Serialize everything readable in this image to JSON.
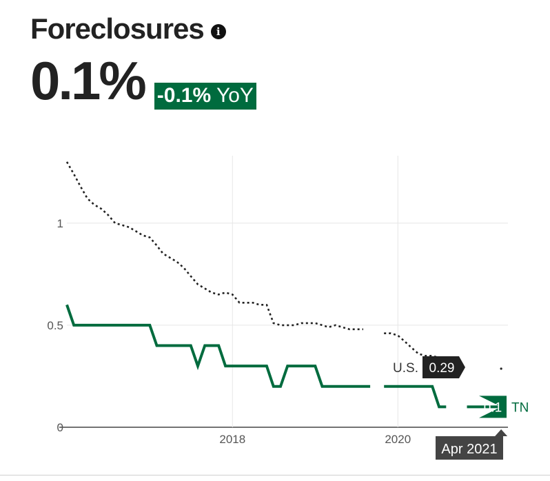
{
  "header": {
    "title": "Foreclosures",
    "info_icon": "info-icon",
    "value": "0.1%",
    "yoy_value": "-0.1%",
    "yoy_suffix": " YoY"
  },
  "colors": {
    "tn": "#006b3e",
    "us": "#222222",
    "grid": "#e6e6e6",
    "tooltip_bg": "#444444"
  },
  "chart_data": {
    "type": "line",
    "title": "",
    "xlabel": "",
    "ylabel": "",
    "xlim": [
      "2016-01-01",
      "2021-05-01"
    ],
    "ylim": [
      0,
      1.33
    ],
    "y_ticks": [
      {
        "value": 0,
        "label": "0"
      },
      {
        "value": 0.5,
        "label": "0.5"
      },
      {
        "value": 1,
        "label": "1"
      }
    ],
    "x_ticks": [
      {
        "date": "2018-01-01",
        "label": "2018"
      },
      {
        "date": "2020-01-01",
        "label": "2020"
      }
    ],
    "grid": true,
    "series": [
      {
        "name": "TN",
        "style": "solid",
        "end_label": "0.1",
        "points": [
          [
            "2016-01-01",
            0.6
          ],
          [
            "2016-02-01",
            0.5
          ],
          [
            "2017-01-01",
            0.5
          ],
          [
            "2017-02-01",
            0.4
          ],
          [
            "2017-07-01",
            0.4
          ],
          [
            "2017-08-01",
            0.3
          ],
          [
            "2017-09-01",
            0.4
          ],
          [
            "2017-11-01",
            0.4
          ],
          [
            "2017-12-01",
            0.3
          ],
          [
            "2018-06-01",
            0.3
          ],
          [
            "2018-07-01",
            0.2
          ],
          [
            "2018-08-01",
            0.2
          ],
          [
            "2018-09-01",
            0.3
          ],
          [
            "2019-01-01",
            0.3
          ],
          [
            "2019-02-01",
            0.2
          ],
          [
            "2019-09-01",
            0.2
          ],
          null,
          [
            "2019-11-01",
            0.2
          ],
          [
            "2020-06-01",
            0.2
          ],
          [
            "2020-07-01",
            0.1
          ],
          [
            "2020-08-01",
            0.1
          ],
          null,
          [
            "2020-11-01",
            0.1
          ],
          [
            "2021-04-01",
            0.1
          ]
        ]
      },
      {
        "name": "U.S.",
        "style": "dotted",
        "end_label": "0.29",
        "points": [
          [
            "2016-01-01",
            1.3
          ],
          [
            "2016-02-01",
            1.24
          ],
          [
            "2016-03-01",
            1.18
          ],
          [
            "2016-04-01",
            1.12
          ],
          [
            "2016-05-01",
            1.09
          ],
          [
            "2016-06-01",
            1.07
          ],
          [
            "2016-07-01",
            1.04
          ],
          [
            "2016-08-01",
            1.0
          ],
          [
            "2016-09-01",
            0.99
          ],
          [
            "2016-10-01",
            0.98
          ],
          [
            "2016-11-01",
            0.96
          ],
          [
            "2016-12-01",
            0.94
          ],
          [
            "2017-01-01",
            0.93
          ],
          [
            "2017-02-01",
            0.89
          ],
          [
            "2017-03-01",
            0.85
          ],
          [
            "2017-04-01",
            0.83
          ],
          [
            "2017-05-01",
            0.81
          ],
          [
            "2017-06-01",
            0.78
          ],
          [
            "2017-07-01",
            0.74
          ],
          [
            "2017-08-01",
            0.7
          ],
          [
            "2017-09-01",
            0.68
          ],
          [
            "2017-10-01",
            0.66
          ],
          [
            "2017-11-01",
            0.65
          ],
          [
            "2017-12-01",
            0.66
          ],
          [
            "2018-01-01",
            0.65
          ],
          [
            "2018-02-01",
            0.61
          ],
          [
            "2018-03-01",
            0.61
          ],
          [
            "2018-04-01",
            0.61
          ],
          [
            "2018-05-01",
            0.6
          ],
          [
            "2018-06-01",
            0.6
          ],
          [
            "2018-07-01",
            0.51
          ],
          [
            "2018-08-01",
            0.5
          ],
          [
            "2018-09-01",
            0.5
          ],
          [
            "2018-10-01",
            0.5
          ],
          [
            "2018-11-01",
            0.51
          ],
          [
            "2018-12-01",
            0.51
          ],
          [
            "2019-01-01",
            0.51
          ],
          [
            "2019-02-01",
            0.5
          ],
          [
            "2019-03-01",
            0.49
          ],
          [
            "2019-04-01",
            0.5
          ],
          [
            "2019-05-01",
            0.49
          ],
          [
            "2019-06-01",
            0.48
          ],
          [
            "2019-07-01",
            0.48
          ],
          [
            "2019-08-01",
            0.48
          ],
          null,
          [
            "2019-11-01",
            0.46
          ],
          [
            "2019-12-01",
            0.46
          ],
          [
            "2020-01-01",
            0.45
          ],
          [
            "2020-02-01",
            0.42
          ],
          [
            "2020-03-01",
            0.39
          ],
          [
            "2020-04-01",
            0.36
          ],
          [
            "2020-05-01",
            0.35
          ],
          [
            "2020-06-01",
            0.35
          ],
          [
            "2020-07-01",
            0.34
          ]
        ]
      }
    ],
    "hover_label": "Apr 2021",
    "hover_date": "2021-04-01"
  }
}
